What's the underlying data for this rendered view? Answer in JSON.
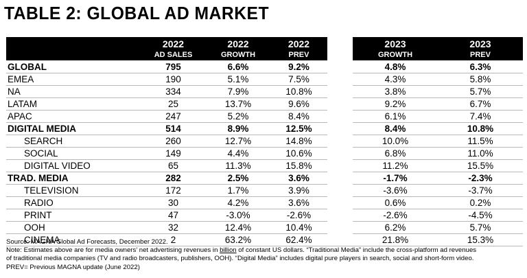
{
  "title": "TABLE 2: GLOBAL AD MARKET",
  "columns": [
    {
      "year": "2022",
      "sub": "AD SALES"
    },
    {
      "year": "2022",
      "sub": "GROWTH"
    },
    {
      "year": "2022",
      "sub": "PREV"
    },
    {
      "year": "2023",
      "sub": "GROWTH"
    },
    {
      "year": "2023",
      "sub": "PREV"
    }
  ],
  "rows": [
    {
      "label": "GLOBAL",
      "bold": true,
      "indent": false,
      "values": [
        "795",
        "6.6%",
        "9.2%",
        "4.8%",
        "6.3%"
      ]
    },
    {
      "label": "EMEA",
      "bold": false,
      "indent": false,
      "values": [
        "190",
        "5.1%",
        "7.5%",
        "4.3%",
        "5.8%"
      ]
    },
    {
      "label": "NA",
      "bold": false,
      "indent": false,
      "values": [
        "334",
        "7.9%",
        "10.8%",
        "3.8%",
        "5.7%"
      ]
    },
    {
      "label": "LATAM",
      "bold": false,
      "indent": false,
      "values": [
        "25",
        "13.7%",
        "9.6%",
        "9.2%",
        "6.7%"
      ]
    },
    {
      "label": "APAC",
      "bold": false,
      "indent": false,
      "values": [
        "247",
        "5.2%",
        "8.4%",
        "6.1%",
        "7.4%"
      ]
    },
    {
      "label": "DIGITAL MEDIA",
      "bold": true,
      "indent": false,
      "values": [
        "514",
        "8.9%",
        "12.5%",
        "8.4%",
        "10.8%"
      ]
    },
    {
      "label": "SEARCH",
      "bold": false,
      "indent": true,
      "values": [
        "260",
        "12.7%",
        "14.8%",
        "10.0%",
        "11.5%"
      ]
    },
    {
      "label": "SOCIAL",
      "bold": false,
      "indent": true,
      "values": [
        "149",
        "4.4%",
        "10.6%",
        "6.8%",
        "11.0%"
      ]
    },
    {
      "label": "DIGITAL VIDEO",
      "bold": false,
      "indent": true,
      "values": [
        "65",
        "11.3%",
        "15.8%",
        "11.2%",
        "15.5%"
      ]
    },
    {
      "label": "TRAD. MEDIA",
      "bold": true,
      "indent": false,
      "values": [
        "282",
        "2.5%",
        "3.6%",
        "-1.7%",
        "-2.3%"
      ]
    },
    {
      "label": "TELEVISION",
      "bold": false,
      "indent": true,
      "values": [
        "172",
        "1.7%",
        "3.9%",
        "-3.6%",
        "-3.7%"
      ]
    },
    {
      "label": "RADIO",
      "bold": false,
      "indent": true,
      "values": [
        "30",
        "4.2%",
        "3.6%",
        "0.6%",
        "0.2%"
      ]
    },
    {
      "label": "PRINT",
      "bold": false,
      "indent": true,
      "values": [
        "47",
        "-3.0%",
        "-2.6%",
        "-2.6%",
        "-4.5%"
      ]
    },
    {
      "label": "OOH",
      "bold": false,
      "indent": true,
      "values": [
        "32",
        "12.4%",
        "10.4%",
        "6.2%",
        "5.7%"
      ]
    },
    {
      "label": "CINEMA",
      "bold": false,
      "indent": true,
      "values": [
        "2",
        "63.2%",
        "62.4%",
        "21.8%",
        "15.3%"
      ]
    }
  ],
  "notes": {
    "source": "Source: MAGNA Global Ad Forecasts, December 2022.",
    "line1_pre": "Note: Estimates above are for media owners’ net advertising revenues in ",
    "line1_link": "billion",
    "line1_post": " of constant US dollars. “Traditional Media” include the cross-platform ad revenues",
    "line2": "of traditional media companies (TV and radio broadcasters, publishers, OOH). “Digital Media” includes digital pure players in search, social and short-form video.",
    "prev": "PREV= Previous MAGNA update (June 2022)"
  }
}
